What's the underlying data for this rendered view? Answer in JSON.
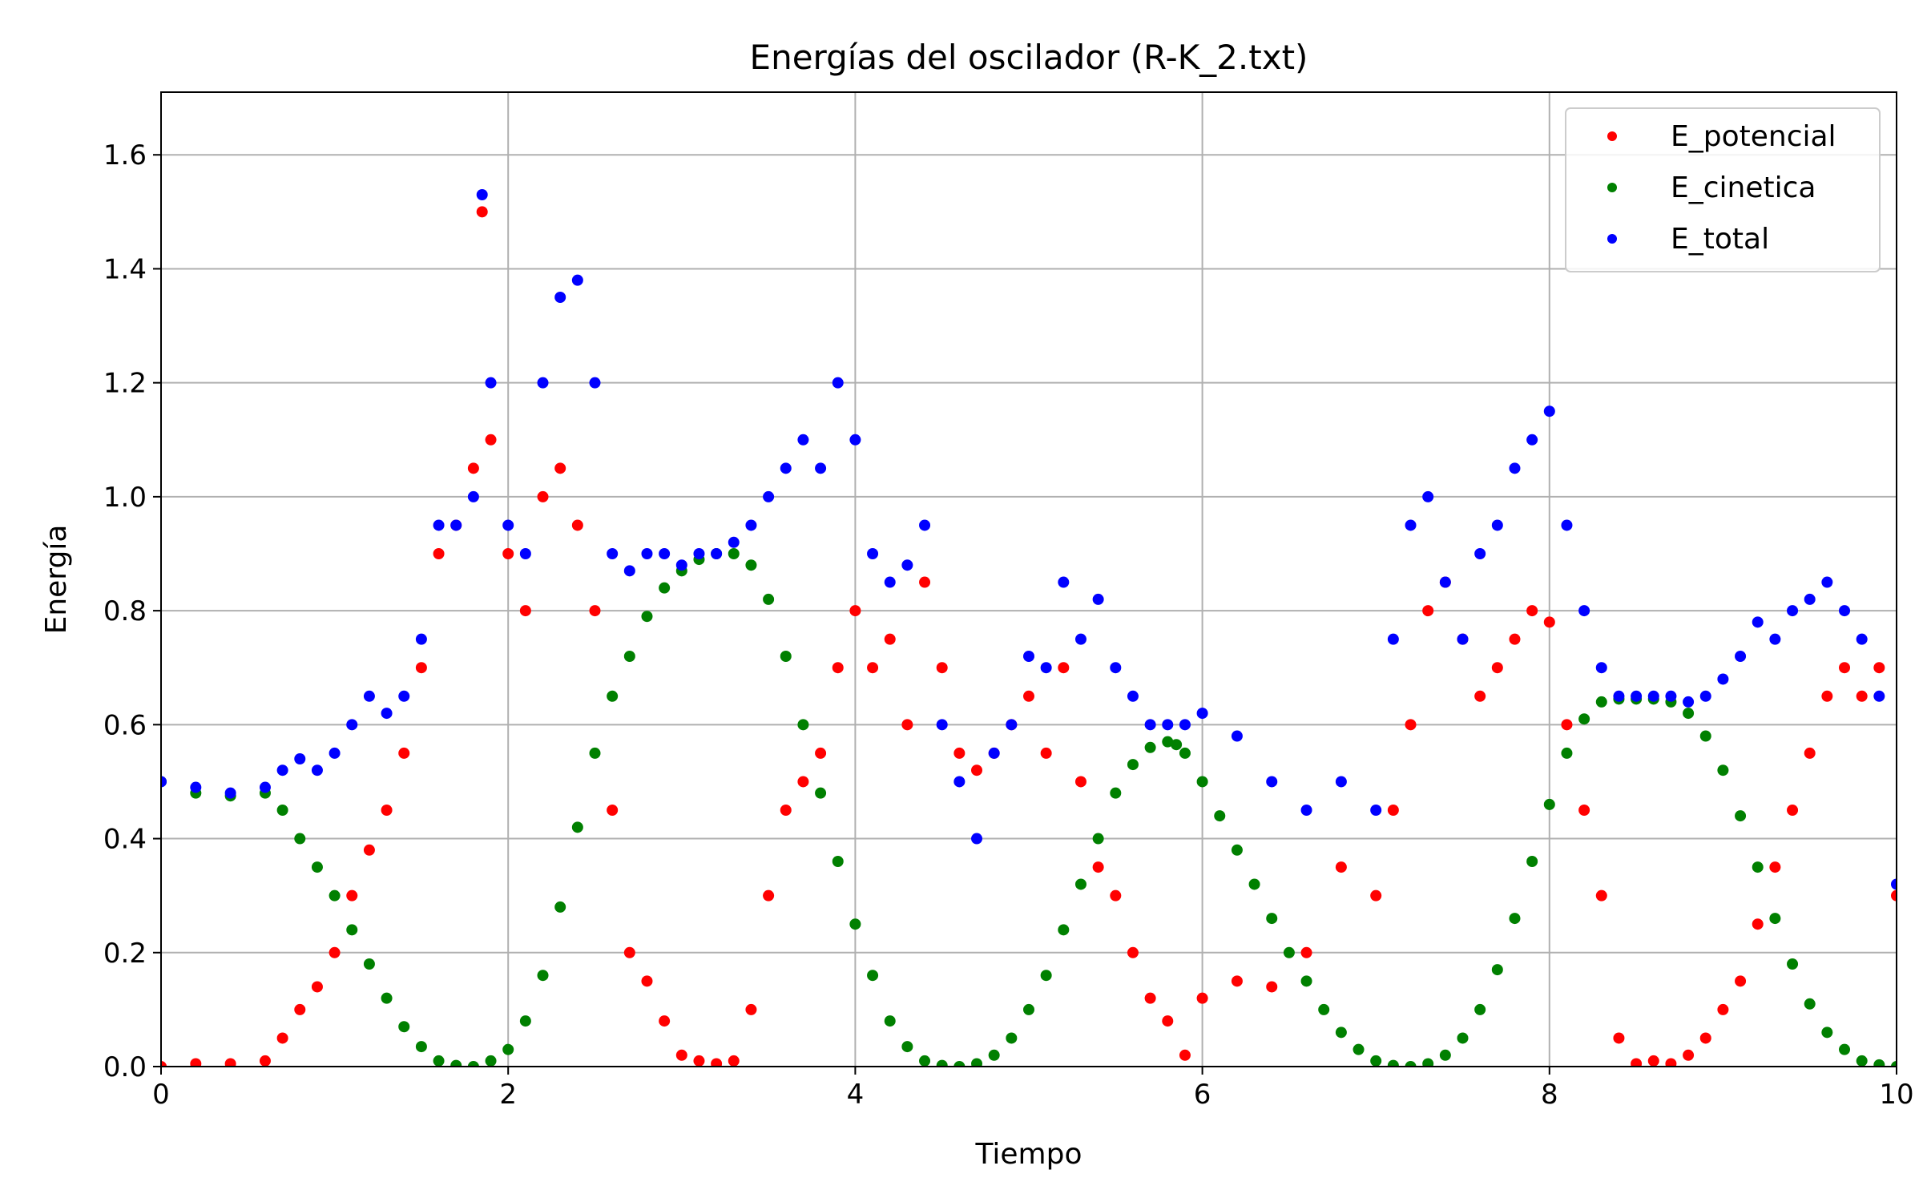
{
  "chart_data": {
    "type": "scatter",
    "title": "Energías del oscilador (R-K_2.txt)",
    "xlabel": "Tiempo",
    "ylabel": "Energía",
    "xlim": [
      0,
      10
    ],
    "ylim": [
      0,
      1.71
    ],
    "xticks": [
      "0",
      "2",
      "4",
      "6",
      "8",
      "10"
    ],
    "yticks": [
      "0.0",
      "0.2",
      "0.4",
      "0.6",
      "0.8",
      "1.0",
      "1.2",
      "1.4",
      "1.6"
    ],
    "grid": true,
    "legend": "top-right",
    "series": [
      {
        "name": "E_potencial",
        "color": "#ff0000",
        "x": [
          0.0,
          0.2,
          0.4,
          0.6,
          0.7,
          0.8,
          0.9,
          1.0,
          1.1,
          1.2,
          1.3,
          1.4,
          1.5,
          1.6,
          1.7,
          1.8,
          1.85,
          1.9,
          2.0,
          2.1,
          2.2,
          2.3,
          2.4,
          2.5,
          2.6,
          2.7,
          2.8,
          2.9,
          3.0,
          3.1,
          3.2,
          3.3,
          3.4,
          3.5,
          3.6,
          3.7,
          3.8,
          3.9,
          4.0,
          4.1,
          4.2,
          4.3,
          4.4,
          4.5,
          4.6,
          4.7,
          4.8,
          4.9,
          5.0,
          5.1,
          5.2,
          5.3,
          5.4,
          5.5,
          5.6,
          5.7,
          5.8,
          5.9,
          6.0,
          6.2,
          6.4,
          6.6,
          6.8,
          7.0,
          7.1,
          7.2,
          7.3,
          7.4,
          7.5,
          7.6,
          7.7,
          7.8,
          7.9,
          8.0,
          8.1,
          8.2,
          8.3,
          8.4,
          8.5,
          8.6,
          8.7,
          8.8,
          8.9,
          9.0,
          9.1,
          9.2,
          9.3,
          9.4,
          9.5,
          9.6,
          9.7,
          9.8,
          9.9,
          10.0
        ],
        "y": [
          0.0,
          0.005,
          0.005,
          0.01,
          0.05,
          0.1,
          0.14,
          0.2,
          0.3,
          0.38,
          0.45,
          0.55,
          0.7,
          0.9,
          0.95,
          1.05,
          1.5,
          1.1,
          0.9,
          0.8,
          1.0,
          1.05,
          0.95,
          0.8,
          0.45,
          0.2,
          0.15,
          0.08,
          0.02,
          0.01,
          0.005,
          0.01,
          0.1,
          0.3,
          0.45,
          0.5,
          0.55,
          0.7,
          0.8,
          0.7,
          0.75,
          0.6,
          0.85,
          0.7,
          0.55,
          0.52,
          0.55,
          0.6,
          0.65,
          0.55,
          0.7,
          0.5,
          0.35,
          0.3,
          0.2,
          0.12,
          0.08,
          0.02,
          0.12,
          0.15,
          0.14,
          0.2,
          0.35,
          0.3,
          0.45,
          0.6,
          0.8,
          0.85,
          0.75,
          0.65,
          0.7,
          0.75,
          0.8,
          0.78,
          0.6,
          0.45,
          0.3,
          0.05,
          0.005,
          0.01,
          0.005,
          0.02,
          0.05,
          0.1,
          0.15,
          0.25,
          0.35,
          0.45,
          0.55,
          0.65,
          0.7,
          0.65,
          0.7,
          0.3
        ]
      },
      {
        "name": "E_cinetica",
        "color": "#008000",
        "x": [
          0.0,
          0.2,
          0.4,
          0.6,
          0.7,
          0.8,
          0.9,
          1.0,
          1.1,
          1.2,
          1.3,
          1.4,
          1.5,
          1.6,
          1.7,
          1.8,
          1.9,
          2.0,
          2.1,
          2.2,
          2.3,
          2.4,
          2.5,
          2.6,
          2.7,
          2.8,
          2.9,
          3.0,
          3.1,
          3.2,
          3.3,
          3.4,
          3.5,
          3.6,
          3.7,
          3.8,
          3.9,
          4.0,
          4.1,
          4.2,
          4.3,
          4.4,
          4.5,
          4.6,
          4.7,
          4.8,
          4.9,
          5.0,
          5.1,
          5.2,
          5.3,
          5.4,
          5.5,
          5.6,
          5.7,
          5.8,
          5.85,
          5.9,
          6.0,
          6.1,
          6.2,
          6.3,
          6.4,
          6.5,
          6.6,
          6.7,
          6.8,
          6.9,
          7.0,
          7.1,
          7.2,
          7.3,
          7.4,
          7.5,
          7.6,
          7.7,
          7.8,
          7.9,
          8.0,
          8.1,
          8.2,
          8.3,
          8.4,
          8.5,
          8.6,
          8.7,
          8.8,
          8.9,
          9.0,
          9.1,
          9.2,
          9.3,
          9.4,
          9.5,
          9.6,
          9.7,
          9.8,
          9.9,
          10.0
        ],
        "y": [
          0.5,
          0.48,
          0.475,
          0.48,
          0.45,
          0.4,
          0.35,
          0.3,
          0.24,
          0.18,
          0.12,
          0.07,
          0.035,
          0.01,
          0.002,
          0.0,
          0.01,
          0.03,
          0.08,
          0.16,
          0.28,
          0.42,
          0.55,
          0.65,
          0.72,
          0.79,
          0.84,
          0.87,
          0.89,
          0.9,
          0.9,
          0.88,
          0.82,
          0.72,
          0.6,
          0.48,
          0.36,
          0.25,
          0.16,
          0.08,
          0.035,
          0.01,
          0.002,
          0.0,
          0.005,
          0.02,
          0.05,
          0.1,
          0.16,
          0.24,
          0.32,
          0.4,
          0.48,
          0.53,
          0.56,
          0.57,
          0.565,
          0.55,
          0.5,
          0.44,
          0.38,
          0.32,
          0.26,
          0.2,
          0.15,
          0.1,
          0.06,
          0.03,
          0.01,
          0.002,
          0.0,
          0.005,
          0.02,
          0.05,
          0.1,
          0.17,
          0.26,
          0.36,
          0.46,
          0.55,
          0.61,
          0.64,
          0.645,
          0.645,
          0.645,
          0.64,
          0.62,
          0.58,
          0.52,
          0.44,
          0.35,
          0.26,
          0.18,
          0.11,
          0.06,
          0.03,
          0.01,
          0.003,
          0.0
        ]
      },
      {
        "name": "E_total",
        "color": "#0000ff",
        "x": [
          0.0,
          0.2,
          0.4,
          0.6,
          0.7,
          0.8,
          0.9,
          1.0,
          1.1,
          1.2,
          1.3,
          1.4,
          1.5,
          1.6,
          1.7,
          1.8,
          1.85,
          1.9,
          2.0,
          2.1,
          2.2,
          2.3,
          2.4,
          2.5,
          2.6,
          2.7,
          2.8,
          2.9,
          3.0,
          3.1,
          3.2,
          3.3,
          3.4,
          3.5,
          3.6,
          3.7,
          3.8,
          3.9,
          4.0,
          4.1,
          4.2,
          4.3,
          4.4,
          4.5,
          4.6,
          4.7,
          4.8,
          4.9,
          5.0,
          5.1,
          5.2,
          5.3,
          5.4,
          5.5,
          5.6,
          5.7,
          5.8,
          5.9,
          6.0,
          6.2,
          6.4,
          6.6,
          6.8,
          7.0,
          7.1,
          7.2,
          7.3,
          7.4,
          7.5,
          7.6,
          7.7,
          7.8,
          7.9,
          8.0,
          8.1,
          8.2,
          8.3,
          8.4,
          8.5,
          8.6,
          8.7,
          8.8,
          8.9,
          9.0,
          9.1,
          9.2,
          9.3,
          9.4,
          9.5,
          9.6,
          9.7,
          9.8,
          9.9,
          10.0
        ],
        "y": [
          0.5,
          0.49,
          0.48,
          0.49,
          0.52,
          0.54,
          0.52,
          0.55,
          0.6,
          0.65,
          0.62,
          0.65,
          0.75,
          0.95,
          0.95,
          1.0,
          1.53,
          1.2,
          0.95,
          0.9,
          1.2,
          1.35,
          1.38,
          1.2,
          0.9,
          0.87,
          0.9,
          0.9,
          0.88,
          0.9,
          0.9,
          0.92,
          0.95,
          1.0,
          1.05,
          1.1,
          1.05,
          1.2,
          1.1,
          0.9,
          0.85,
          0.88,
          0.95,
          0.6,
          0.5,
          0.4,
          0.55,
          0.6,
          0.72,
          0.7,
          0.85,
          0.75,
          0.82,
          0.7,
          0.65,
          0.6,
          0.6,
          0.6,
          0.62,
          0.58,
          0.5,
          0.45,
          0.5,
          0.45,
          0.75,
          0.95,
          1.0,
          0.85,
          0.75,
          0.9,
          0.95,
          1.05,
          1.1,
          1.15,
          0.95,
          0.8,
          0.7,
          0.65,
          0.65,
          0.65,
          0.65,
          0.64,
          0.65,
          0.68,
          0.72,
          0.78,
          0.75,
          0.8,
          0.82,
          0.85,
          0.8,
          0.75,
          0.65,
          0.32
        ]
      }
    ]
  }
}
